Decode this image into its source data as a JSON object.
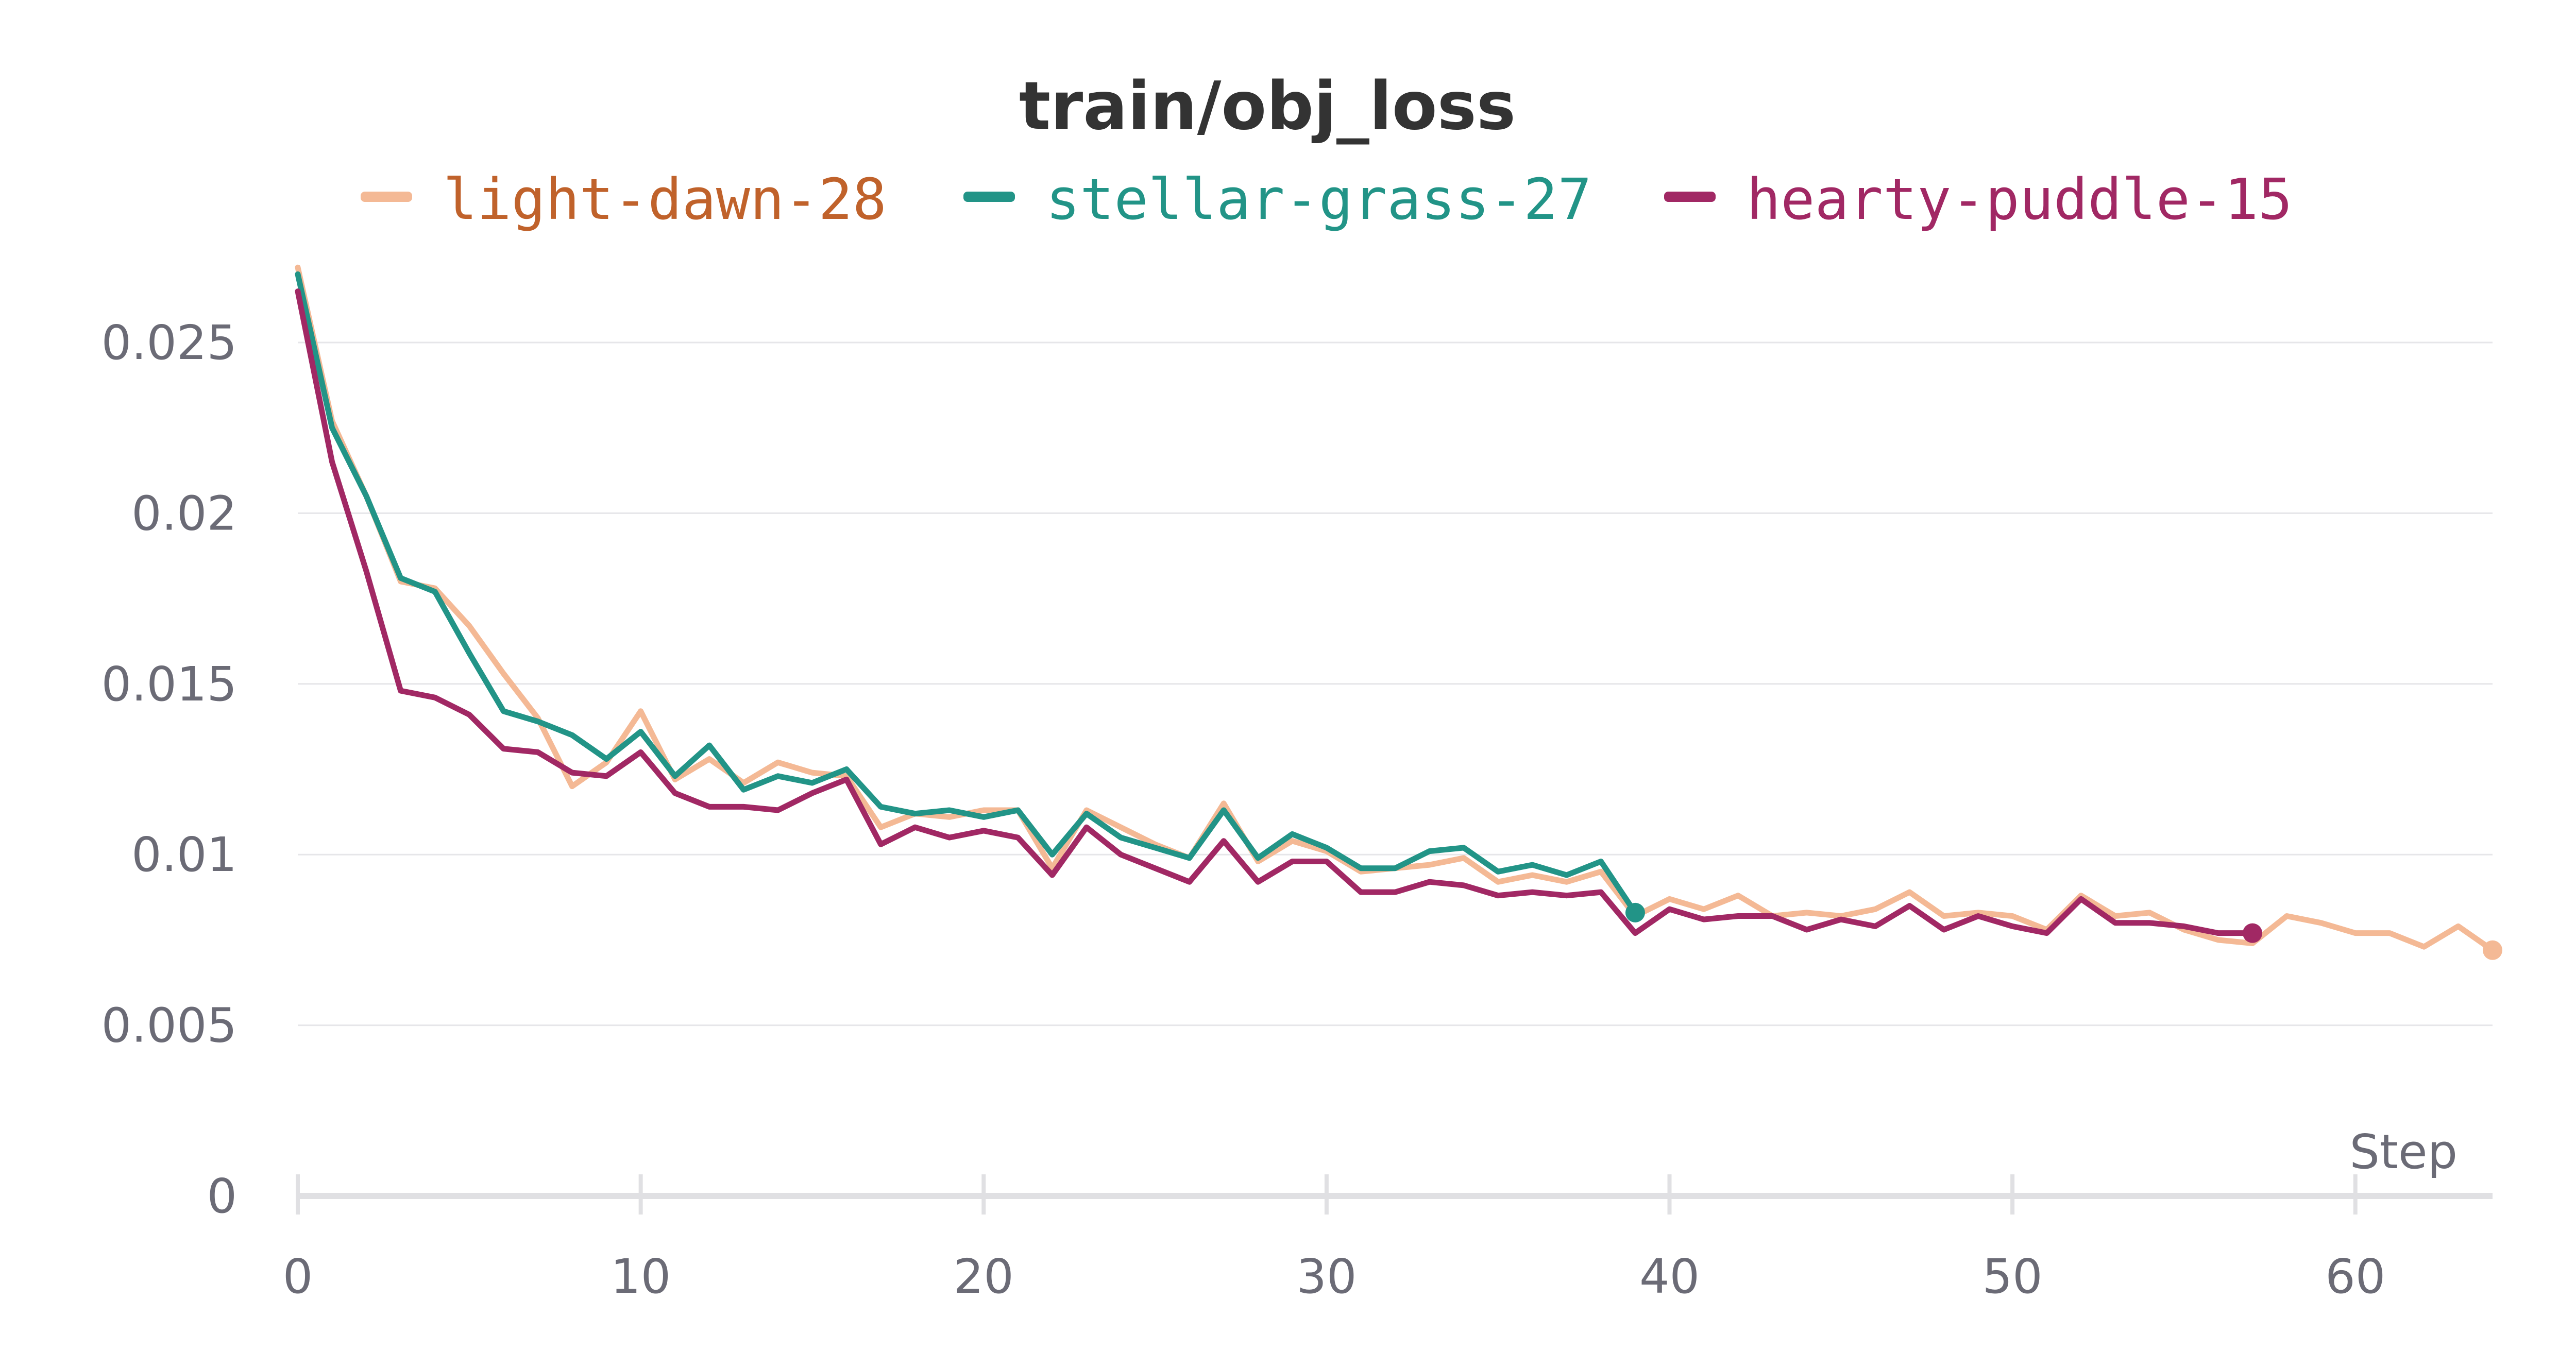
{
  "chart_data": {
    "type": "line",
    "title": "train/obj_loss",
    "xlabel": "Step",
    "ylabel": "",
    "xlim": [
      0,
      64
    ],
    "ylim": [
      0,
      0.027
    ],
    "x_ticks": [
      0,
      10,
      20,
      30,
      40,
      50,
      60
    ],
    "y_ticks": [
      0,
      0.005,
      0.01,
      0.015,
      0.02,
      0.025
    ],
    "y_tick_labels": [
      "0",
      "0.005",
      "0.01",
      "0.015",
      "0.02",
      "0.025"
    ],
    "grid": true,
    "legend_position": "top",
    "series": [
      {
        "name": "light-dawn-28",
        "color": "#f4b995",
        "text_color": "#c0622b",
        "values": [
          0.0272,
          0.0227,
          0.0205,
          0.018,
          0.0178,
          0.0167,
          0.0153,
          0.014,
          0.012,
          0.0127,
          0.0142,
          0.0122,
          0.0128,
          0.0121,
          0.0127,
          0.0124,
          0.0123,
          0.0108,
          0.0112,
          0.0111,
          0.0113,
          0.0113,
          0.0096,
          0.0113,
          0.0108,
          0.0103,
          0.0099,
          0.0115,
          0.0098,
          0.0104,
          0.0101,
          0.0095,
          0.0096,
          0.0097,
          0.0099,
          0.0092,
          0.0094,
          0.0092,
          0.0095,
          0.0082,
          0.0087,
          0.0084,
          0.0088,
          0.0082,
          0.0083,
          0.0082,
          0.0084,
          0.0089,
          0.0082,
          0.0083,
          0.0082,
          0.0078,
          0.0088,
          0.0082,
          0.0083,
          0.0078,
          0.0075,
          0.0074,
          0.0082,
          0.008,
          0.0077,
          0.0077,
          0.0073,
          0.0079,
          0.0072
        ]
      },
      {
        "name": "stellar-grass-27",
        "color": "#229487",
        "text_color": "#229487",
        "values": [
          0.027,
          0.0225,
          0.0205,
          0.0181,
          0.0177,
          0.0159,
          0.0142,
          0.0139,
          0.0135,
          0.0128,
          0.0136,
          0.0123,
          0.0132,
          0.0119,
          0.0123,
          0.0121,
          0.0125,
          0.0114,
          0.0112,
          0.0113,
          0.0111,
          0.0113,
          0.01,
          0.0112,
          0.0105,
          0.0102,
          0.0099,
          0.0113,
          0.0099,
          0.0106,
          0.0102,
          0.0096,
          0.0096,
          0.0101,
          0.0102,
          0.0095,
          0.0097,
          0.0094,
          0.0098,
          0.0083
        ]
      },
      {
        "name": "hearty-puddle-15",
        "color": "#a12864",
        "text_color": "#a12864",
        "values": [
          0.0265,
          0.0215,
          0.0183,
          0.0148,
          0.0146,
          0.0141,
          0.0131,
          0.013,
          0.0124,
          0.0123,
          0.013,
          0.0118,
          0.0114,
          0.0114,
          0.0113,
          0.0118,
          0.0122,
          0.0103,
          0.0108,
          0.0105,
          0.0107,
          0.0105,
          0.0094,
          0.0108,
          0.01,
          0.0096,
          0.0092,
          0.0104,
          0.0092,
          0.0098,
          0.0098,
          0.0089,
          0.0089,
          0.0092,
          0.0091,
          0.0088,
          0.0089,
          0.0088,
          0.0089,
          0.0077,
          0.0084,
          0.0081,
          0.0082,
          0.0082,
          0.0078,
          0.0081,
          0.0079,
          0.0085,
          0.0078,
          0.0082,
          0.0079,
          0.0077,
          0.0087,
          0.008,
          0.008,
          0.0079,
          0.0077,
          0.0077
        ]
      }
    ]
  }
}
